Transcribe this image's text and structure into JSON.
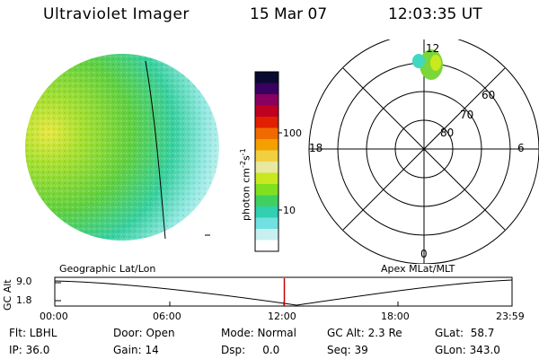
{
  "header": {
    "title": "Ultraviolet Imager",
    "date": "15 Mar 07",
    "time": "12:03:35 UT"
  },
  "colorbar": {
    "title": "photon cm-2s-1",
    "title_base": "photon cm",
    "title_sup1": "-2",
    "title_mid": "s",
    "title_sup2": "-1",
    "labels": [
      "100",
      "10"
    ],
    "colors": [
      "#0a0a30",
      "#3a0060",
      "#8a0060",
      "#c00020",
      "#e02000",
      "#f06a00",
      "#f4a000",
      "#f0d040",
      "#e8e8a0",
      "#c8e820",
      "#80e020",
      "#40d060",
      "#30d0b0",
      "#70e0e0",
      "#c8f0f0",
      "#ffffff"
    ]
  },
  "polar_plot": {
    "mlt_labels": [
      "12",
      "18",
      "6",
      "0"
    ],
    "lat_labels": [
      "60",
      "70",
      "80"
    ]
  },
  "timeline": {
    "ylabel": "GC Alt",
    "yticks": [
      "9.0",
      "1.8"
    ],
    "left_label": "Geographic Lat/Lon",
    "right_label": "Apex MLat/MLT",
    "xticks": [
      "00:00",
      "06:00",
      "12:00",
      "18:00",
      "23:59"
    ],
    "current_time_fraction": 0.502
  },
  "info": {
    "filter": "Flt: LBHL",
    "ip": "IP: 36.0",
    "door": "Door: Open",
    "gain": "Gain: 14",
    "mode": "Mode: Normal",
    "dsp": "Dsp:     0.0",
    "gc_alt": "GC Alt: 2.3 Re",
    "seq": "Seq: 39",
    "glat": "GLat:  58.7",
    "glon": "GLon: 343.0"
  },
  "colors": {
    "earth_main": "#7ad63a",
    "earth_bright": "#d8e840",
    "earth_cyan": "#40d8c0",
    "earth_pale": "#c8f0f0",
    "marker_red": "#cc0000"
  }
}
